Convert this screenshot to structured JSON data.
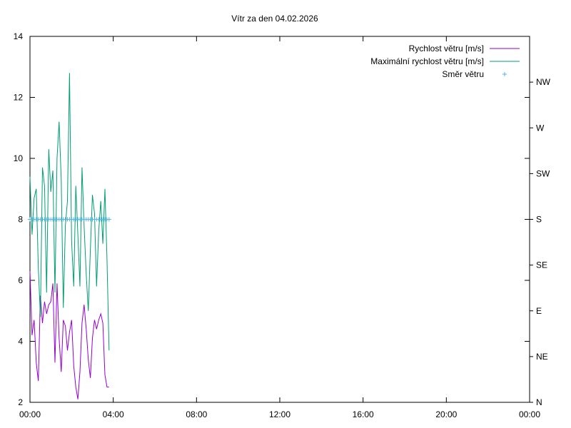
{
  "chart_data": {
    "type": "line",
    "title": "Vítr za den 04.02.2026",
    "xlabel": "",
    "ylabel": "",
    "x_ticks": [
      "00:00",
      "04:00",
      "08:00",
      "12:00",
      "16:00",
      "20:00",
      "00:00"
    ],
    "xlim": [
      0,
      24
    ],
    "ylim": [
      2,
      14
    ],
    "y_ticks": [
      2,
      4,
      6,
      8,
      10,
      12,
      14
    ],
    "y2_ticks": [
      "N",
      "NE",
      "E",
      "SE",
      "S",
      "SW",
      "W",
      "NW"
    ],
    "y2lim": [
      0,
      360
    ],
    "grid": false,
    "legend_position": "top-right",
    "series": [
      {
        "name": "Rychlost větru [m/s]",
        "color": "#9400d3",
        "x": [
          0.0,
          0.1,
          0.2,
          0.3,
          0.4,
          0.5,
          0.6,
          0.7,
          0.8,
          0.9,
          1.0,
          1.1,
          1.2,
          1.3,
          1.4,
          1.5,
          1.6,
          1.7,
          1.8,
          1.9,
          2.0,
          2.1,
          2.2,
          2.3,
          2.4,
          2.5,
          2.6,
          2.7,
          2.8,
          2.9,
          3.0,
          3.1,
          3.2,
          3.3,
          3.4,
          3.5,
          3.6,
          3.7,
          3.8
        ],
        "values": [
          6.3,
          4.2,
          4.7,
          3.3,
          2.7,
          5.5,
          4.6,
          5.3,
          4.9,
          5.2,
          5.3,
          5.9,
          3.3,
          5.9,
          4.1,
          3.0,
          4.7,
          4.5,
          3.7,
          4.3,
          4.7,
          3.2,
          2.5,
          2.1,
          3.0,
          4.6,
          5.2,
          4.4,
          3.4,
          2.8,
          4.1,
          4.7,
          4.4,
          4.7,
          4.9,
          4.6,
          2.9,
          2.5,
          2.5
        ]
      },
      {
        "name": "Maximální rychlost větru [m/s]",
        "color": "#009e73",
        "x": [
          0.0,
          0.1,
          0.2,
          0.3,
          0.4,
          0.5,
          0.6,
          0.7,
          0.8,
          0.9,
          1.0,
          1.1,
          1.2,
          1.3,
          1.4,
          1.5,
          1.6,
          1.7,
          1.8,
          1.9,
          2.0,
          2.1,
          2.2,
          2.3,
          2.4,
          2.5,
          2.6,
          2.7,
          2.8,
          2.9,
          3.0,
          3.1,
          3.2,
          3.3,
          3.4,
          3.5,
          3.6,
          3.7,
          3.8
        ],
        "values": [
          9.4,
          7.5,
          8.7,
          9.0,
          6.4,
          4.8,
          9.7,
          9.1,
          5.6,
          10.3,
          8.9,
          9.6,
          5.6,
          10.0,
          11.2,
          9.3,
          5.1,
          7.8,
          8.6,
          12.8,
          7.3,
          5.8,
          9.1,
          7.5,
          5.8,
          9.7,
          7.8,
          6.2,
          5.0,
          7.0,
          8.8,
          8.2,
          5.8,
          7.6,
          8.6,
          7.2,
          9.0,
          6.7,
          3.7
        ]
      },
      {
        "name": "Směr větru",
        "color": "#56b4e9",
        "marker": "+",
        "axis": "y2",
        "x": [
          0.0,
          0.1,
          0.2,
          0.3,
          0.4,
          0.5,
          0.6,
          0.7,
          0.8,
          0.9,
          1.0,
          1.1,
          1.2,
          1.3,
          1.4,
          1.5,
          1.6,
          1.7,
          1.8,
          1.9,
          2.0,
          2.1,
          2.2,
          2.3,
          2.4,
          2.5,
          2.6,
          2.7,
          2.8,
          2.9,
          3.0,
          3.1,
          3.2,
          3.3,
          3.4,
          3.5,
          3.6,
          3.7,
          3.8
        ],
        "values": [
          180,
          180,
          180,
          180,
          180,
          180,
          180,
          180,
          180,
          180,
          180,
          180,
          180,
          180,
          180,
          180,
          180,
          180,
          180,
          180,
          180,
          180,
          180,
          180,
          180,
          180,
          180,
          180,
          180,
          180,
          180,
          180,
          180,
          180,
          180,
          180,
          180,
          180,
          180
        ]
      }
    ]
  }
}
